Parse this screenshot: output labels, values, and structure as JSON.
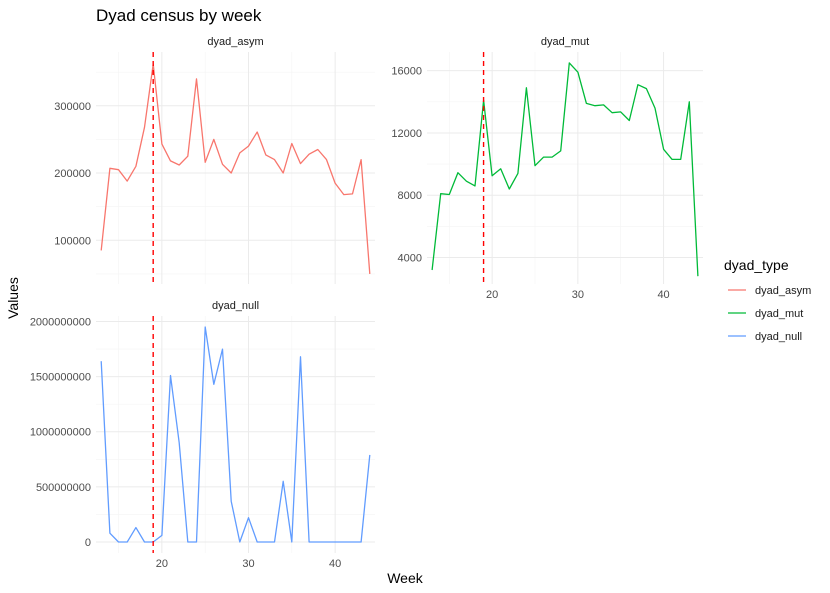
{
  "chart_data": {
    "type": "line",
    "title": "Dyad census by week",
    "xlabel": "Week",
    "ylabel": "Values",
    "legend": {
      "title": "dyad_type",
      "position": "right"
    },
    "reference_line": {
      "x": 19,
      "color": "#ff0000",
      "style": "dashed"
    },
    "x": [
      13,
      14,
      15,
      16,
      17,
      18,
      19,
      20,
      21,
      22,
      23,
      24,
      25,
      26,
      27,
      28,
      29,
      30,
      31,
      32,
      33,
      34,
      35,
      36,
      37,
      38,
      39,
      40,
      41,
      42,
      43,
      44
    ],
    "panels": [
      {
        "name": "dyad_asym",
        "color": "#F8766D",
        "xlim": [
          12.4,
          44.6
        ],
        "ylim": [
          35000,
          380000
        ],
        "yticks": [
          100000,
          200000,
          300000
        ],
        "values": [
          85000,
          207000,
          205000,
          188000,
          210000,
          268000,
          362000,
          243000,
          218000,
          212000,
          225000,
          340000,
          216000,
          250000,
          213000,
          200000,
          230000,
          240000,
          261000,
          227000,
          220000,
          200000,
          244000,
          214000,
          228000,
          235000,
          220000,
          185000,
          168000,
          169000,
          220000,
          50000
        ]
      },
      {
        "name": "dyad_mut",
        "color": "#00BA38",
        "xlim": [
          12.4,
          44.6
        ],
        "ylim": [
          2300,
          17200
        ],
        "yticks": [
          4000,
          8000,
          12000,
          16000
        ],
        "values": [
          3200,
          8100,
          8050,
          9450,
          8900,
          8600,
          14100,
          9250,
          9700,
          8400,
          9400,
          14900,
          9900,
          10450,
          10450,
          10850,
          16500,
          15900,
          13900,
          13750,
          13800,
          13300,
          13350,
          12800,
          15100,
          14850,
          13600,
          10950,
          10300,
          10300,
          14000,
          2800
        ]
      },
      {
        "name": "dyad_null",
        "color": "#619CFF",
        "xlim": [
          12.4,
          44.6
        ],
        "ylim": [
          -100000000,
          2050000000
        ],
        "yticks": [
          0,
          500000000,
          1000000000,
          1500000000,
          2000000000
        ],
        "ytick_labels": [
          "0",
          "500000000",
          "1000000000",
          "1500000000",
          "2000000000"
        ],
        "values": [
          1640000000,
          80000000,
          0,
          0,
          130000000,
          0,
          0,
          60000000,
          1510000000,
          900000000,
          0,
          0,
          1950000000,
          1430000000,
          1750000000,
          370000000,
          0,
          220000000,
          0,
          0,
          0,
          550000000,
          0,
          1680000000,
          0,
          0,
          0,
          0,
          0,
          0,
          0,
          790000000
        ]
      }
    ],
    "xticks": [
      20,
      30,
      40
    ]
  }
}
